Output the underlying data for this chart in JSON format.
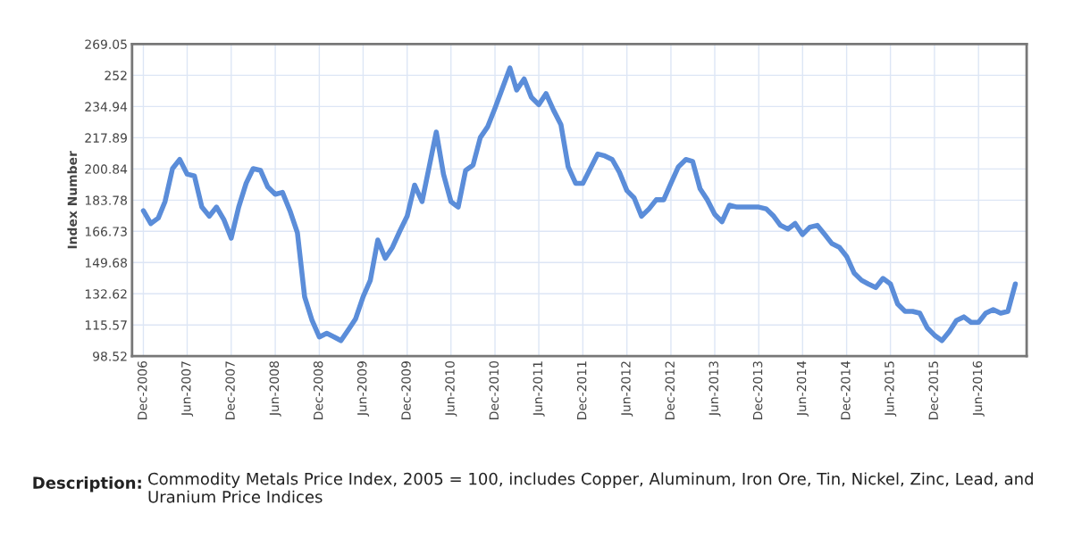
{
  "chart_data": {
    "type": "line",
    "ylabel": "Index Number",
    "x": [
      "2006-12",
      "2007-01",
      "2007-02",
      "2007-03",
      "2007-04",
      "2007-05",
      "2007-06",
      "2007-07",
      "2007-08",
      "2007-09",
      "2007-10",
      "2007-11",
      "2007-12",
      "2008-01",
      "2008-02",
      "2008-03",
      "2008-04",
      "2008-05",
      "2008-06",
      "2008-07",
      "2008-08",
      "2008-09",
      "2008-10",
      "2008-11",
      "2008-12",
      "2009-01",
      "2009-02",
      "2009-03",
      "2009-04",
      "2009-05",
      "2009-06",
      "2009-07",
      "2009-08",
      "2009-09",
      "2009-10",
      "2009-11",
      "2009-12",
      "2010-01",
      "2010-02",
      "2010-03",
      "2010-04",
      "2010-05",
      "2010-06",
      "2010-07",
      "2010-08",
      "2010-09",
      "2010-10",
      "2010-11",
      "2010-12",
      "2011-01",
      "2011-02",
      "2011-03",
      "2011-04",
      "2011-05",
      "2011-06",
      "2011-07",
      "2011-08",
      "2011-09",
      "2011-10",
      "2011-11",
      "2011-12",
      "2012-01",
      "2012-02",
      "2012-03",
      "2012-04",
      "2012-05",
      "2012-06",
      "2012-07",
      "2012-08",
      "2012-09",
      "2012-10",
      "2012-11",
      "2012-12",
      "2013-01",
      "2013-02",
      "2013-03",
      "2013-04",
      "2013-05",
      "2013-06",
      "2013-07",
      "2013-08",
      "2013-09",
      "2013-10",
      "2013-11",
      "2013-12",
      "2014-01",
      "2014-02",
      "2014-03",
      "2014-04",
      "2014-05",
      "2014-06",
      "2014-07",
      "2014-08",
      "2014-09",
      "2014-10",
      "2014-11",
      "2014-12",
      "2015-01",
      "2015-02",
      "2015-03",
      "2015-04",
      "2015-05",
      "2015-06",
      "2015-07",
      "2015-08",
      "2015-09",
      "2015-10",
      "2015-11",
      "2015-12",
      "2016-01",
      "2016-02",
      "2016-03",
      "2016-04",
      "2016-05",
      "2016-06",
      "2016-07",
      "2016-08",
      "2016-09",
      "2016-10",
      "2016-11"
    ],
    "series": [
      {
        "color": "#5b8dd9",
        "values": [
          178,
          171,
          174,
          183,
          201,
          206,
          198,
          197,
          180,
          175,
          180,
          173,
          163,
          180,
          193,
          201,
          200,
          191,
          187,
          188,
          178,
          166,
          131,
          118,
          109,
          111,
          109,
          107,
          113,
          119,
          131,
          140,
          162,
          152,
          158,
          167,
          175,
          192,
          183,
          201,
          221,
          198,
          183,
          180,
          200,
          203,
          218,
          224,
          234,
          245,
          256,
          244,
          250,
          240,
          236,
          242,
          233,
          225,
          202,
          193,
          193,
          201,
          209,
          208,
          206,
          199,
          189,
          185,
          175,
          179,
          184,
          184,
          193,
          202,
          206,
          205,
          190,
          184,
          176,
          172,
          181,
          180,
          180,
          180,
          180,
          179,
          175,
          170,
          168,
          171,
          165,
          169,
          170,
          165,
          160,
          158,
          153,
          144,
          140,
          138,
          136,
          141,
          138,
          127,
          123,
          123,
          122,
          114,
          110,
          107,
          112,
          118,
          120,
          117,
          117,
          122,
          124,
          122,
          123,
          138
        ]
      }
    ],
    "xlim": [
      "2006-10-15",
      "2016-12-18"
    ],
    "xticks": [
      {
        "value": "2006-12",
        "label": "Dec-2006"
      },
      {
        "value": "2007-06",
        "label": "Jun-2007"
      },
      {
        "value": "2007-12",
        "label": "Dec-2007"
      },
      {
        "value": "2008-06",
        "label": "Jun-2008"
      },
      {
        "value": "2008-12",
        "label": "Dec-2008"
      },
      {
        "value": "2009-06",
        "label": "Jun-2009"
      },
      {
        "value": "2009-12",
        "label": "Dec-2009"
      },
      {
        "value": "2010-06",
        "label": "Jun-2010"
      },
      {
        "value": "2010-12",
        "label": "Dec-2010"
      },
      {
        "value": "2011-06",
        "label": "Jun-2011"
      },
      {
        "value": "2011-12",
        "label": "Dec-2011"
      },
      {
        "value": "2012-06",
        "label": "Jun-2012"
      },
      {
        "value": "2012-12",
        "label": "Dec-2012"
      },
      {
        "value": "2013-06",
        "label": "Jun-2013"
      },
      {
        "value": "2013-12",
        "label": "Dec-2013"
      },
      {
        "value": "2014-06",
        "label": "Jun-2014"
      },
      {
        "value": "2014-12",
        "label": "Dec-2014"
      },
      {
        "value": "2015-06",
        "label": "Jun-2015"
      },
      {
        "value": "2015-12",
        "label": "Dec-2015"
      },
      {
        "value": "2016-06",
        "label": "Jun-2016"
      }
    ],
    "ylim": [
      98.52,
      269.05
    ],
    "yticks": [
      98.52,
      115.57,
      132.62,
      149.68,
      166.73,
      183.78,
      200.84,
      217.89,
      234.94,
      252,
      269.05
    ],
    "grid": true,
    "legend": false,
    "marker": "none",
    "line_style": "solid",
    "annotations": [
      "Description:",
      "Commodity Metals Price Index, 2005 = 100, includes Copper, Aluminum, Iron Ore, Tin, Nickel, Zinc, Lead, and Uranium Price Indices"
    ]
  }
}
